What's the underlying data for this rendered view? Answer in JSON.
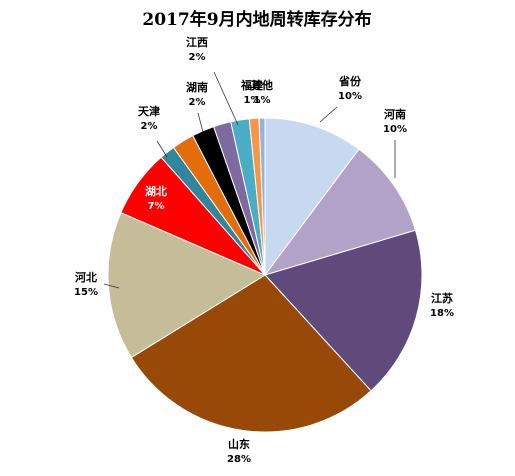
{
  "chart_data": {
    "type": "pie",
    "title": "2017年9月内地周转库存分布",
    "start_angle_deg": 0,
    "direction": "clockwise",
    "slices": [
      {
        "label": "省份",
        "pct_text": "10%",
        "value": 10.2,
        "color": "#c6d9f1"
      },
      {
        "label": "河南",
        "pct_text": "10%",
        "value": 10.2,
        "color": "#b3a2c7"
      },
      {
        "label": "江苏",
        "pct_text": "18%",
        "value": 17.8,
        "color": "#604a7b"
      },
      {
        "label": "山东",
        "pct_text": "28%",
        "value": 28.0,
        "color": "#984807"
      },
      {
        "label": "河北",
        "pct_text": "15%",
        "value": 15.3,
        "color": "#c4bd97"
      },
      {
        "label": "湖北",
        "pct_text": "7%",
        "value": 7.0,
        "color": "#ff0000"
      },
      {
        "label": "天津",
        "pct_text": "2%",
        "value": 1.6,
        "color": "#31859c"
      },
      {
        "label": "湖南",
        "pct_text": "2%",
        "value": 2.3,
        "color": "#e46c0a"
      },
      {
        "label": "",
        "pct_text": "",
        "value": 2.3,
        "color": "#000000"
      },
      {
        "label": "",
        "pct_text": "",
        "value": 1.8,
        "color": "#7f6a9f"
      },
      {
        "label": "江西",
        "pct_text": "2%",
        "value": 1.9,
        "color": "#4bacc6"
      },
      {
        "label": "福建",
        "pct_text": "1%",
        "value": 1.0,
        "color": "#f79646"
      },
      {
        "label": "其他",
        "pct_text": "1%",
        "value": 0.6,
        "color": "#95b3d7"
      }
    ]
  }
}
